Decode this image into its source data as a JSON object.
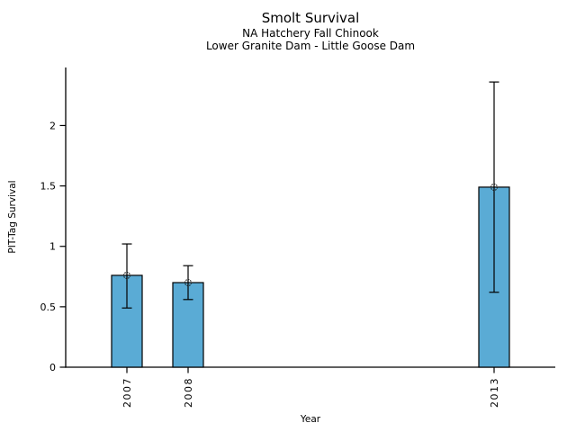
{
  "chart_data": {
    "type": "bar",
    "title": "Smolt Survival",
    "subtitles": [
      "NA Hatchery Fall Chinook",
      "Lower Granite Dam - Little Goose Dam"
    ],
    "xlabel": "Year",
    "ylabel": "PIT-Tag Survival",
    "categories": [
      2007,
      2008,
      2013
    ],
    "x_tick_labels": [
      "2007",
      "2008",
      "2013"
    ],
    "values": [
      0.76,
      0.7,
      1.49
    ],
    "error_low": [
      0.49,
      0.56,
      0.62
    ],
    "error_high": [
      1.02,
      0.84,
      2.36
    ],
    "bar_width_years": 0.5,
    "xlim": [
      2006,
      2014
    ],
    "ylim": [
      0,
      2.48
    ],
    "y_ticks": [
      0,
      0.5,
      1,
      1.5,
      2
    ],
    "y_tick_labels": [
      "0",
      "0.5",
      "1",
      "1.5",
      "2"
    ],
    "grid": false,
    "legend": "none",
    "marker": "open-circle",
    "colors": {
      "bar_fill": "#5AABD5",
      "bar_edge": "#000000",
      "error_bar": "#000000",
      "axis": "#000000",
      "text": "#000000",
      "background": "#ffffff"
    }
  }
}
